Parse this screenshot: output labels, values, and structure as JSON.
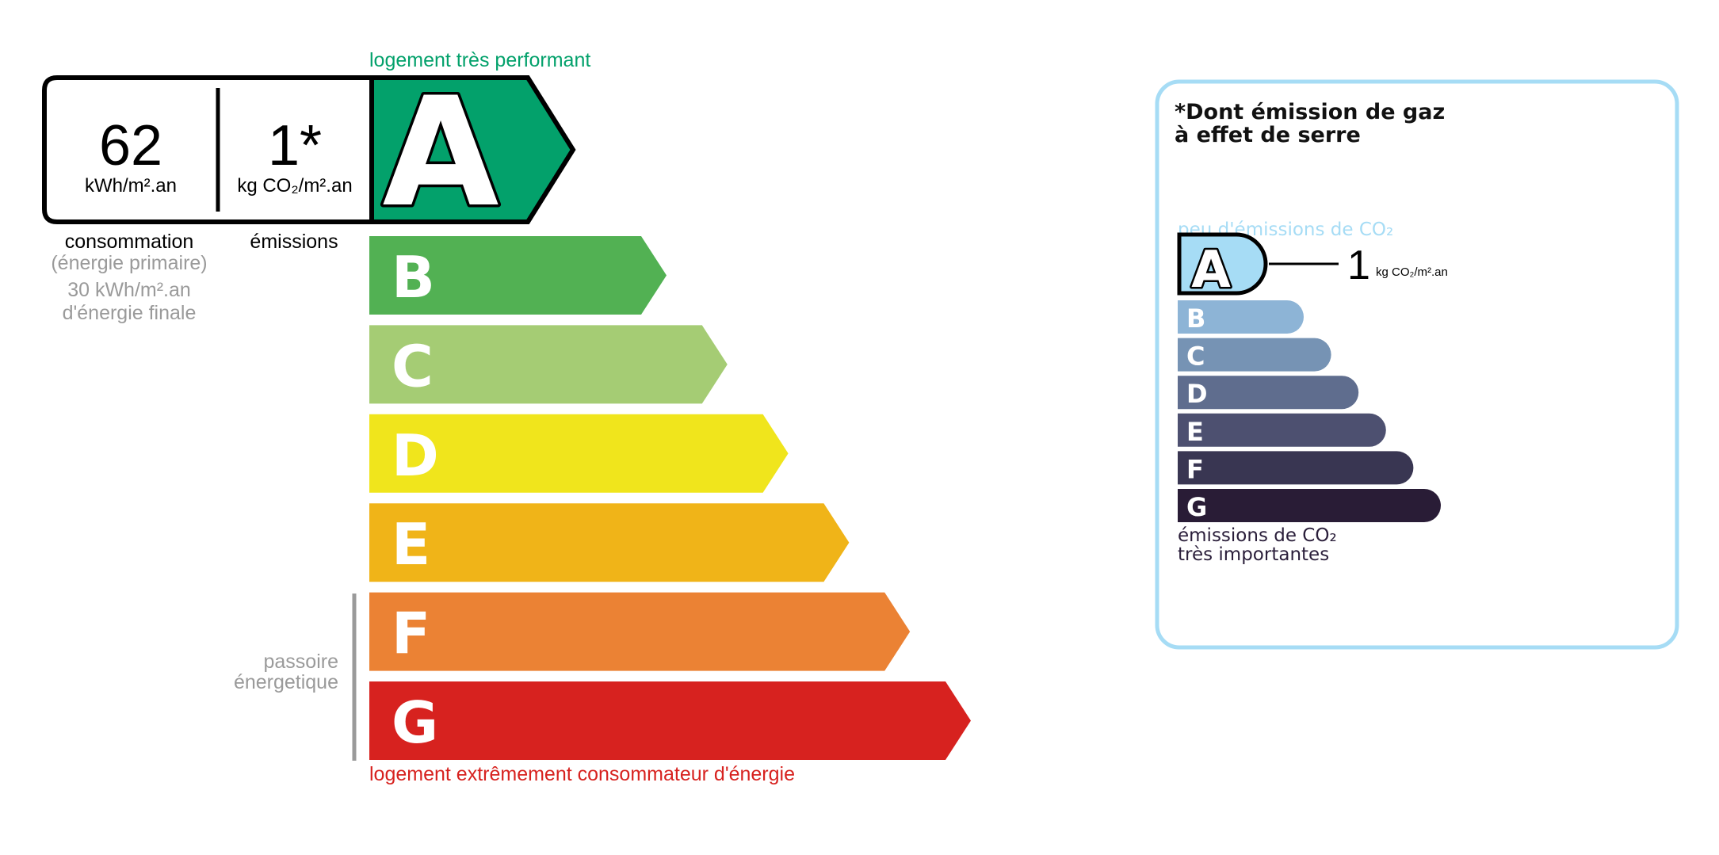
{
  "energy": {
    "top_label": "logement très performant",
    "bottom_label": "logement extrêmement consommateur d'énergie",
    "consumption_value": "62",
    "consumption_unit": "kWh/m².an",
    "emission_value": "1*",
    "emission_unit": "kg CO₂/m².an",
    "consumption_label": "consommation",
    "consumption_sub": "(énergie primaire)",
    "final_energy_value": "30 kWh/m².an",
    "final_energy_label": "d'énergie finale",
    "emissions_label": "émissions",
    "current_class": "A",
    "passoire_line1": "passoire",
    "passoire_line2": "énergetique",
    "classes": [
      {
        "letter": "A",
        "color": "#03a16b"
      },
      {
        "letter": "B",
        "color": "#52b153"
      },
      {
        "letter": "C",
        "color": "#a5cc74"
      },
      {
        "letter": "D",
        "color": "#f0e51c"
      },
      {
        "letter": "E",
        "color": "#f0b418"
      },
      {
        "letter": "F",
        "color": "#eb8234"
      },
      {
        "letter": "G",
        "color": "#d7221f"
      }
    ],
    "top_color": "#03a16b",
    "bottom_color": "#d7221f"
  },
  "ges": {
    "title_line1": "*Dont émission de gaz",
    "title_line2": "à effet de serre",
    "top_label": "peu d'émissions de CO₂",
    "current_class": "A",
    "value": "1",
    "unit": "kg CO₂/m².an",
    "bottom_line1": "émissions de CO₂",
    "bottom_line2": "très importantes",
    "border_color": "#a6dcf5",
    "classes": [
      {
        "letter": "A",
        "color": "#a6dcf5"
      },
      {
        "letter": "B",
        "color": "#8db4d6"
      },
      {
        "letter": "C",
        "color": "#7693b4"
      },
      {
        "letter": "D",
        "color": "#5f6d8e"
      },
      {
        "letter": "E",
        "color": "#4d5070"
      },
      {
        "letter": "F",
        "color": "#393652"
      },
      {
        "letter": "G",
        "color": "#291c36"
      }
    ]
  }
}
